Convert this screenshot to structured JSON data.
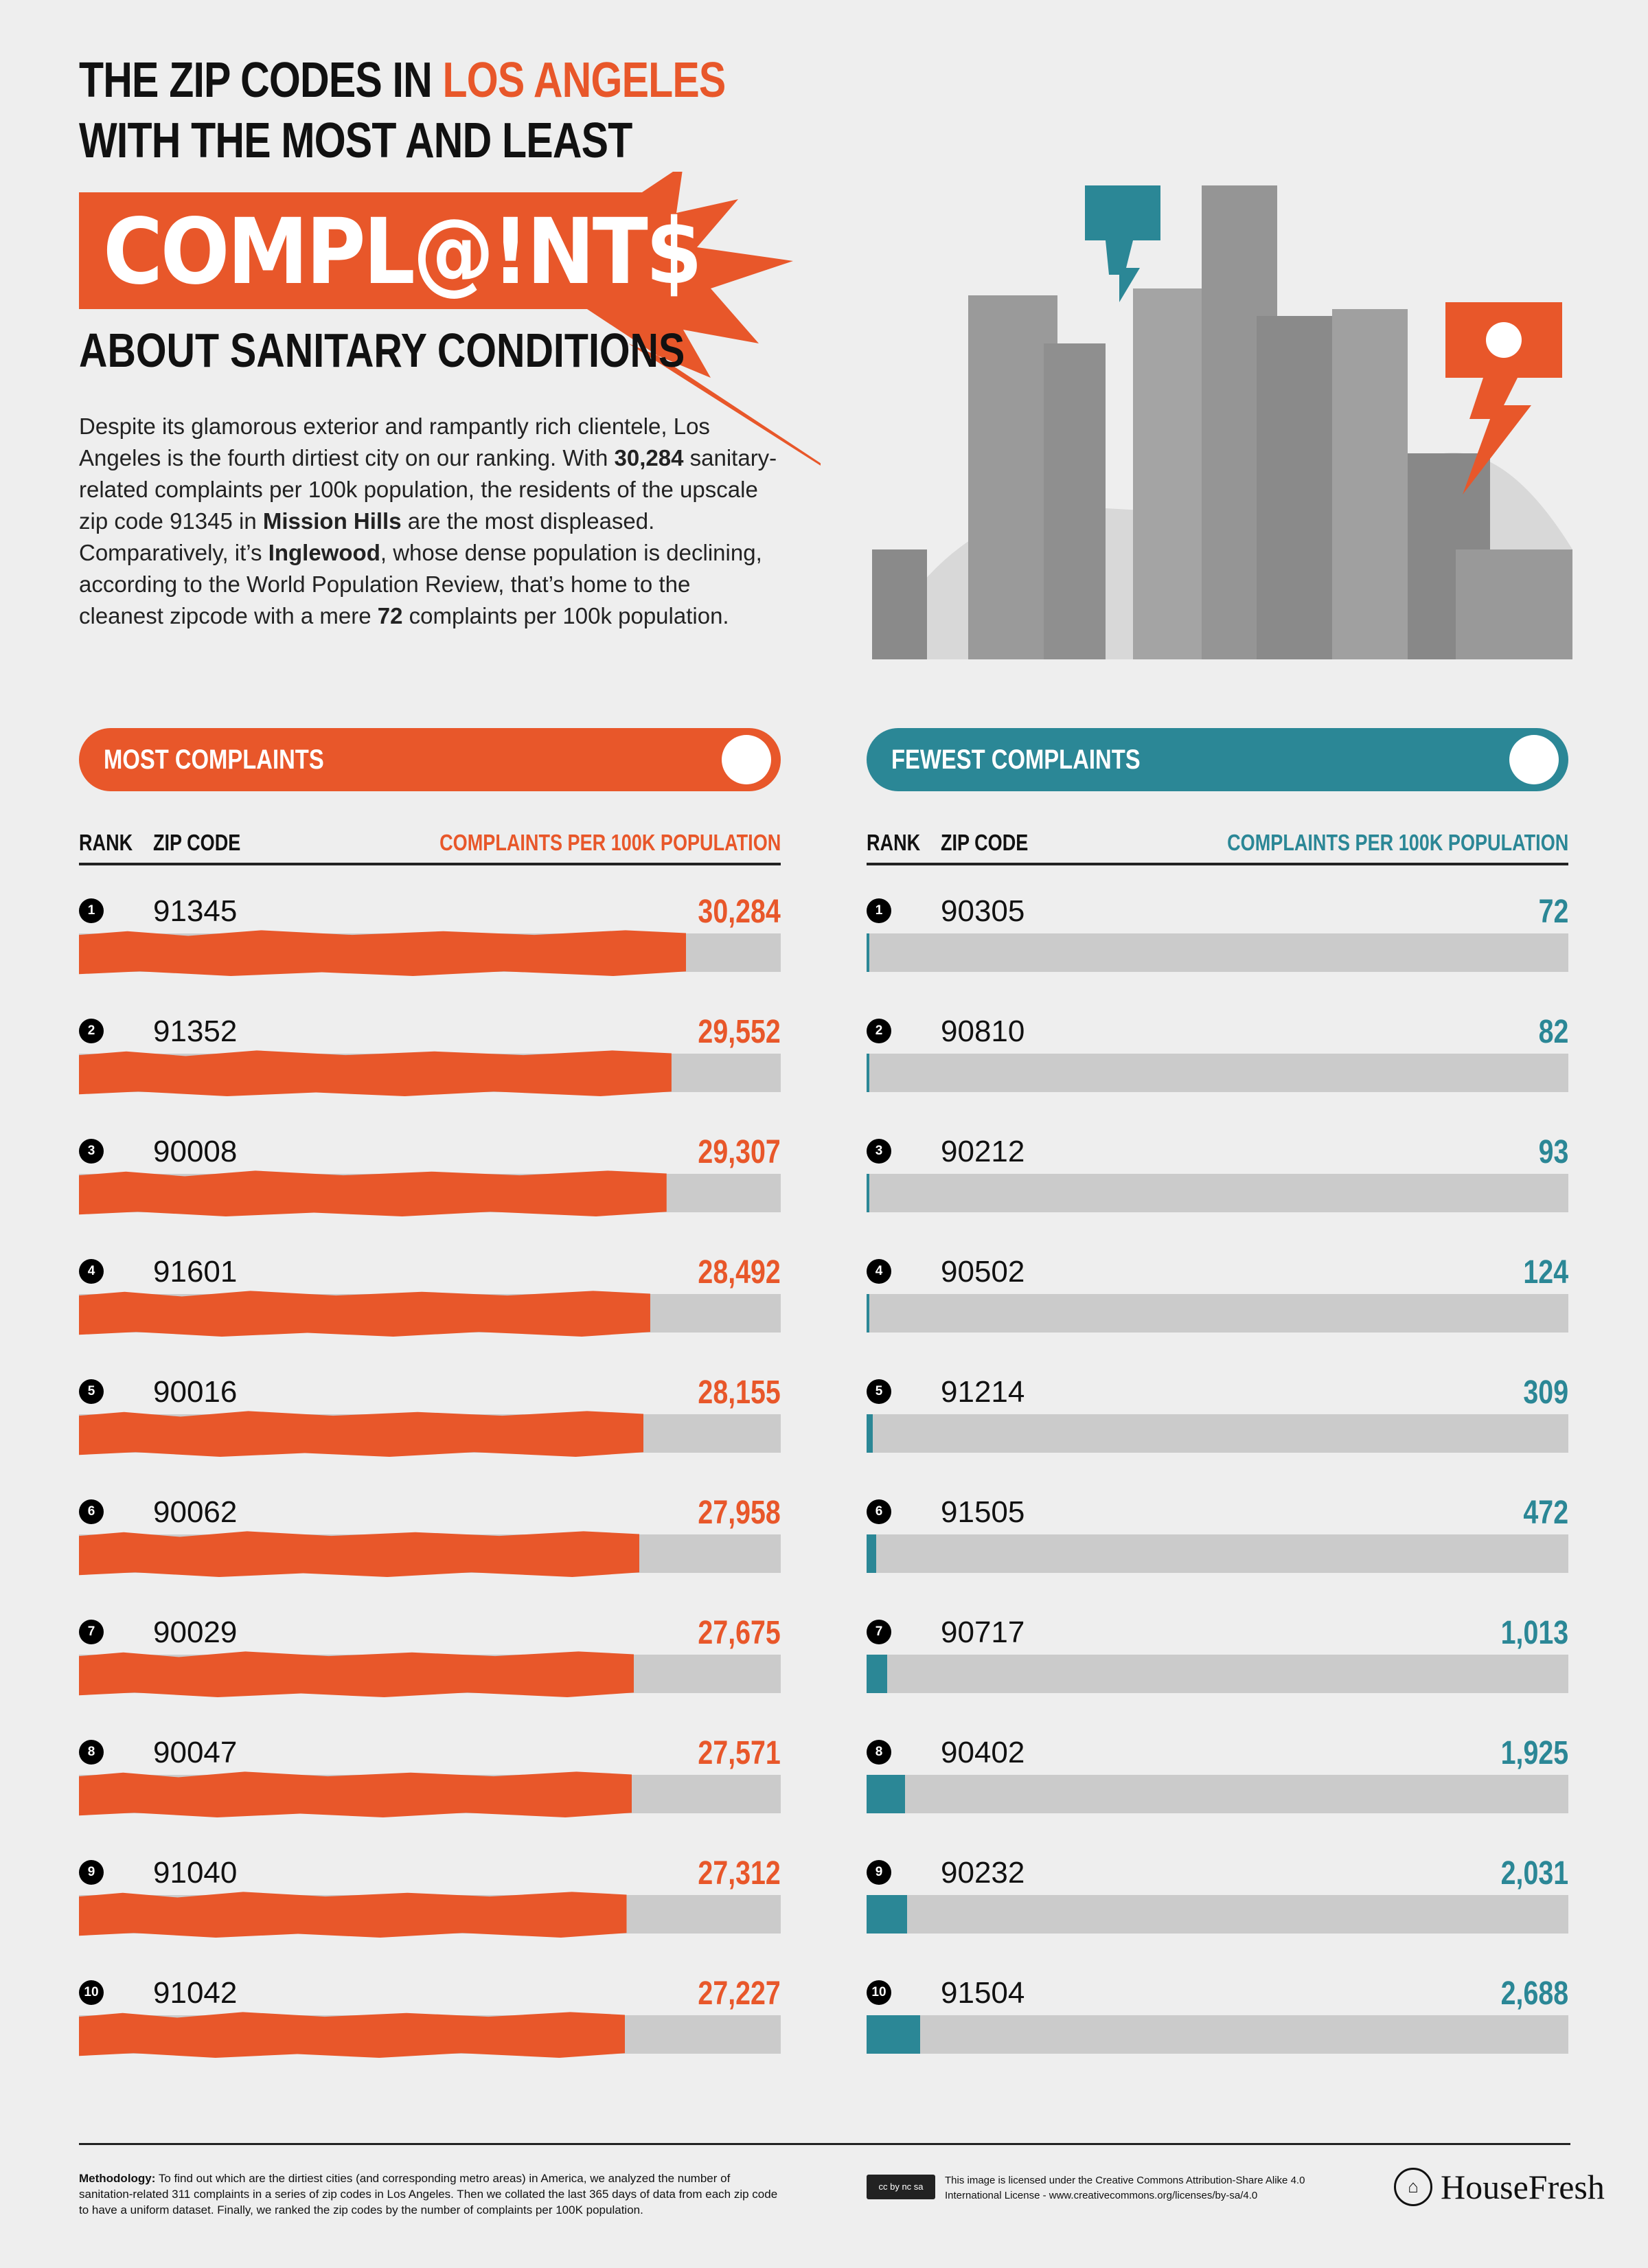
{
  "title": {
    "line1_pre": "THE ZIP CODES IN ",
    "line1_highlight": "LOS ANGELES",
    "line2": "WITH THE MOST AND LEAST",
    "big_word": "COMPL@!NT$",
    "line3": "ABOUT SANITARY CONDITIONS"
  },
  "intro": {
    "p1": "Despite its glamorous exterior and rampantly rich clientele, Los Angeles is the fourth dirtiest city on our ranking. With ",
    "b1": "30,284",
    "p2": " sanitary-related complaints per 100k population, the residents of the upscale zip code 91345 in ",
    "b2": "Mission Hills",
    "p3": " are the most displeased. Comparatively, it’s ",
    "b3": "Inglewood",
    "p4": ", whose dense population is declining, according to the World Population Review, that’s home to the cleanest zipcode with a mere ",
    "b4": "72",
    "p5": " complaints per 100k population."
  },
  "colors": {
    "orange": "#e8572a",
    "teal": "#2b8796",
    "background": "#eeeeee",
    "track": "#cbcbcb"
  },
  "most": {
    "label": "MOST COMPLAINTS",
    "icon": "angry-face-icon",
    "headers": {
      "rank": "RANK",
      "zip": "ZIP CODE",
      "value": "COMPLAINTS PER 100K POPULATION"
    },
    "rows": [
      {
        "rank": "1",
        "zip": "91345",
        "value": "30,284",
        "n": 30284
      },
      {
        "rank": "2",
        "zip": "91352",
        "value": "29,552",
        "n": 29552
      },
      {
        "rank": "3",
        "zip": "90008",
        "value": "29,307",
        "n": 29307
      },
      {
        "rank": "4",
        "zip": "91601",
        "value": "28,492",
        "n": 28492
      },
      {
        "rank": "5",
        "zip": "90016",
        "value": "28,155",
        "n": 28155
      },
      {
        "rank": "6",
        "zip": "90062",
        "value": "27,958",
        "n": 27958
      },
      {
        "rank": "7",
        "zip": "90029",
        "value": "27,675",
        "n": 27675
      },
      {
        "rank": "8",
        "zip": "90047",
        "value": "27,571",
        "n": 27571
      },
      {
        "rank": "9",
        "zip": "91040",
        "value": "27,312",
        "n": 27312
      },
      {
        "rank": "10",
        "zip": "91042",
        "value": "27,227",
        "n": 27227
      }
    ]
  },
  "fewest": {
    "label": "FEWEST COMPLAINTS",
    "icon": "happy-face-icon",
    "headers": {
      "rank": "RANK",
      "zip": "ZIP CODE",
      "value": "COMPLAINTS PER 100K POPULATION"
    },
    "rows": [
      {
        "rank": "1",
        "zip": "90305",
        "value": "72",
        "n": 72
      },
      {
        "rank": "2",
        "zip": "90810",
        "value": "82",
        "n": 82
      },
      {
        "rank": "3",
        "zip": "90212",
        "value": "93",
        "n": 93
      },
      {
        "rank": "4",
        "zip": "90502",
        "value": "124",
        "n": 124
      },
      {
        "rank": "5",
        "zip": "91214",
        "value": "309",
        "n": 309
      },
      {
        "rank": "6",
        "zip": "91505",
        "value": "472",
        "n": 472
      },
      {
        "rank": "7",
        "zip": "90717",
        "value": "1,013",
        "n": 1013
      },
      {
        "rank": "8",
        "zip": "90402",
        "value": "1,925",
        "n": 1925
      },
      {
        "rank": "9",
        "zip": "90232",
        "value": "2,031",
        "n": 2031
      },
      {
        "rank": "10",
        "zip": "91504",
        "value": "2,688",
        "n": 2688
      }
    ]
  },
  "footer": {
    "method_label": "Methodology:",
    "method_text": " To find out which are the dirtiest cities (and corresponding metro areas) in America, we analyzed the number of sanitation-related 311 complaints in a series of zip codes in Los Angeles. Then we collated the last 365 days of data from each zip code to have a uniform dataset. Finally, we ranked the zip codes by the number of complaints per 100K population.",
    "cc_badge": "cc by nc sa",
    "license_line1": "This image is licensed under the Creative Commons Attribution-Share Alike 4.0",
    "license_line2": "International License - www.creativecommons.org/licenses/by-sa/4.0",
    "brand": "HouseFresh"
  }
}
